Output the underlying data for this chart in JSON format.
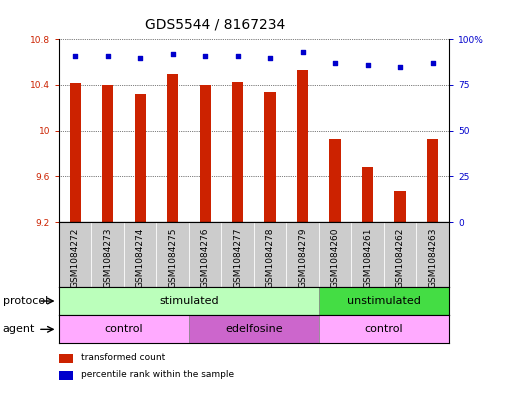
{
  "title": "GDS5544 / 8167234",
  "samples": [
    "GSM1084272",
    "GSM1084273",
    "GSM1084274",
    "GSM1084275",
    "GSM1084276",
    "GSM1084277",
    "GSM1084278",
    "GSM1084279",
    "GSM1084260",
    "GSM1084261",
    "GSM1084262",
    "GSM1084263"
  ],
  "transformed_count": [
    10.42,
    10.4,
    10.32,
    10.5,
    10.4,
    10.43,
    10.34,
    10.53,
    9.93,
    9.68,
    9.47,
    9.93
  ],
  "percentile_rank": [
    91,
    91,
    90,
    92,
    91,
    91,
    90,
    93,
    87,
    86,
    85,
    87
  ],
  "ylim_left": [
    9.2,
    10.8
  ],
  "ylim_right": [
    0,
    100
  ],
  "yticks_left": [
    9.2,
    9.6,
    10.0,
    10.4,
    10.8
  ],
  "yticks_right": [
    0,
    25,
    50,
    75,
    100
  ],
  "ytick_labels_right": [
    "0",
    "25",
    "50",
    "75",
    "100%"
  ],
  "bar_color": "#cc2200",
  "dot_color": "#0000cc",
  "bar_width": 0.35,
  "protocol_color_stim": "#bbffbb",
  "protocol_color_unstim": "#44dd44",
  "agent_color_control": "#ffaaff",
  "agent_color_edelfosine": "#cc66cc",
  "background_color": "#ffffff",
  "title_fontsize": 10,
  "tick_fontsize": 6.5,
  "label_fontsize": 8,
  "row_label_fontsize": 8
}
